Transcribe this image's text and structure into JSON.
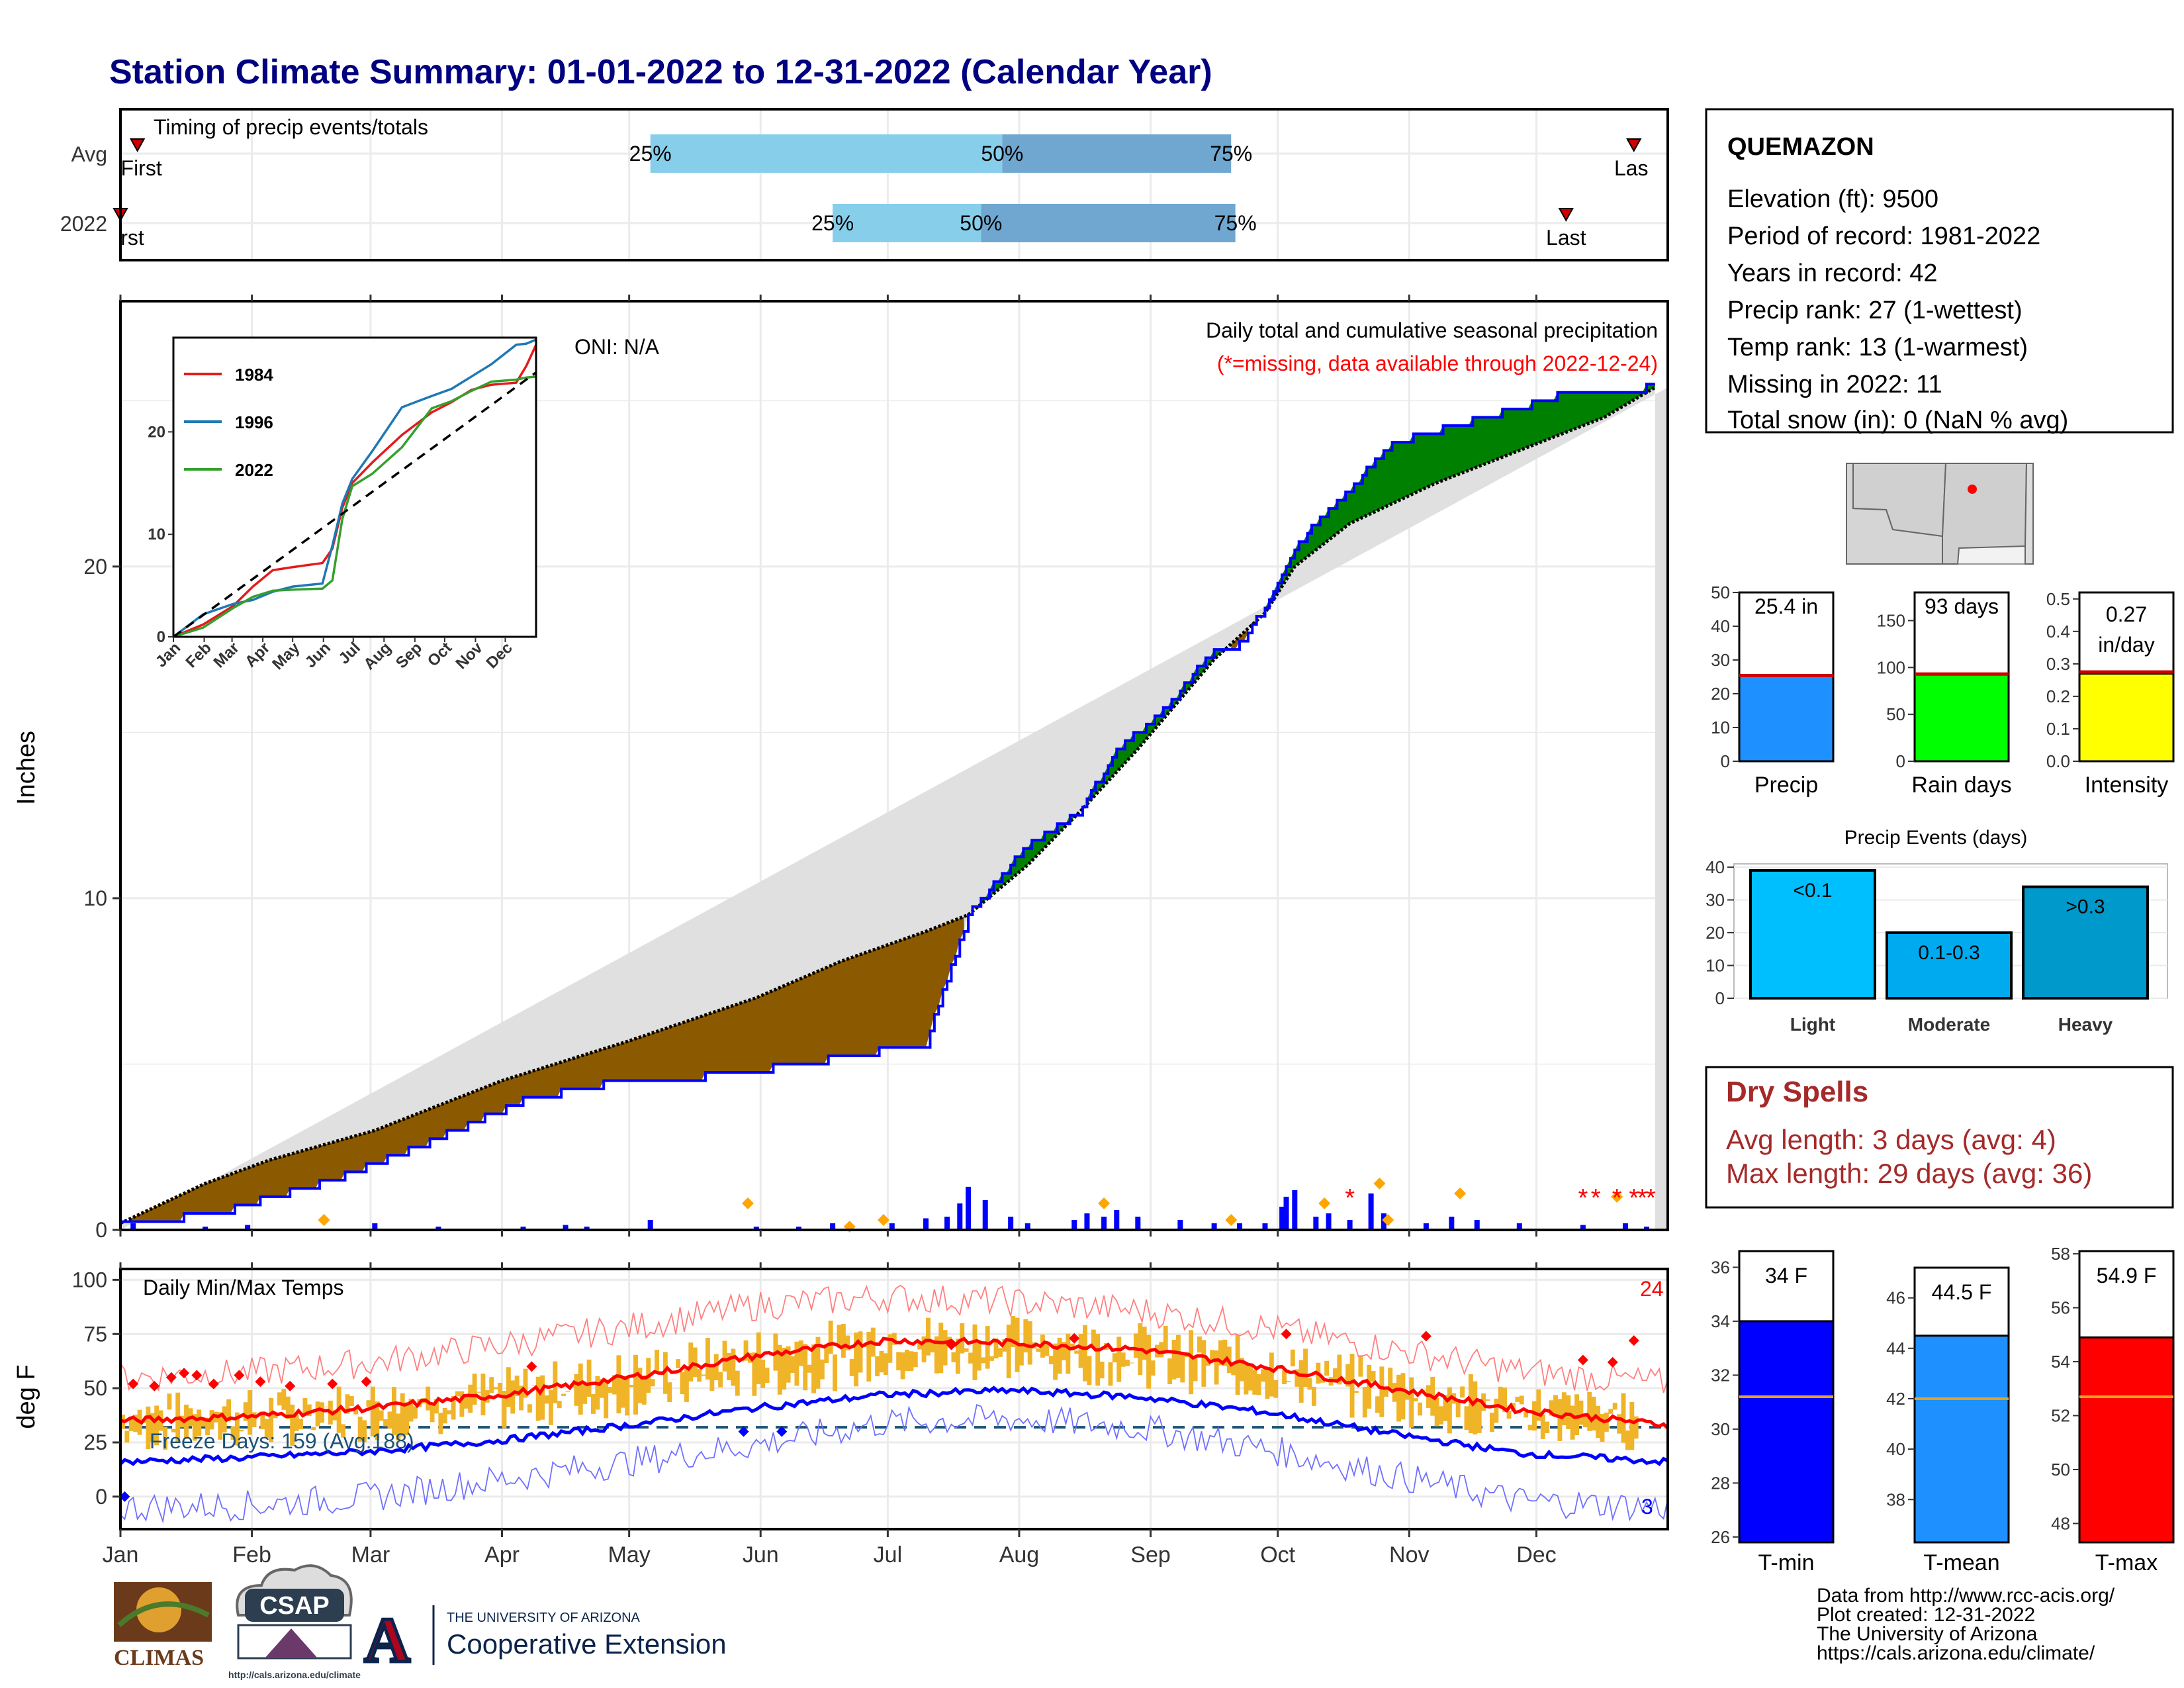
{
  "title": "Station Climate Summary: 01-01-2022 to 12-31-2022 (Calendar Year)",
  "colors": {
    "title": "#000080",
    "gray_fill": "#e0e0e0",
    "brown": "#8b5a00",
    "green": "#008000",
    "blue": "#0000ff",
    "light_bar": "#87ceeb",
    "dark_bar": "#6fa7d0",
    "temp_bar": "#f0b429",
    "red": "#ff0000",
    "orange": "#ffa500",
    "dry_spell_text": "#a52a2a"
  },
  "months": [
    "Jan",
    "Feb",
    "Mar",
    "Apr",
    "May",
    "Jun",
    "Jul",
    "Aug",
    "Sep",
    "Oct",
    "Nov",
    "Dec"
  ],
  "timing": {
    "heading": "Timing of precip events/totals",
    "rows": [
      {
        "label": "Avg",
        "first_day": 4,
        "last_day": 357,
        "first_label": "First",
        "last_label": "Las",
        "q25_day": 125,
        "q50_day": 208,
        "q75_day": 262,
        "q25_label": "25%",
        "q50_label": "50%",
        "q75_label": "75%"
      },
      {
        "label": "2022",
        "first_day": 0,
        "last_day": 341,
        "first_label": "rst",
        "last_label": "Last",
        "q25_day": 168,
        "q50_day": 203,
        "q75_day": 263,
        "q25_label": "25%",
        "q50_label": "50%",
        "q75_label": "75%"
      }
    ]
  },
  "precip_panel": {
    "ylabel": "Inches",
    "oni": "ONI: N/A",
    "heading": "Daily total and cumulative seasonal precipitation",
    "missing_note": "(*=missing, data available through 2022-12-24)",
    "y_ticks": [
      0,
      10,
      20
    ]
  },
  "inset": {
    "y_ticks": [
      0,
      10,
      20
    ],
    "legend": [
      {
        "name": "1984",
        "color": "#e31a1c"
      },
      {
        "name": "1996",
        "color": "#1f78b4"
      },
      {
        "name": "2022",
        "color": "#33a02c"
      }
    ]
  },
  "temp_panel": {
    "ylabel": "deg F",
    "heading": "Daily Min/Max Temps",
    "freeze_text": "Freeze Days: 159 (Avg:188)",
    "count_hot": "24",
    "count_cold": "3",
    "y_ticks": [
      0,
      25,
      50,
      75,
      100
    ]
  },
  "station": {
    "name": "QUEMAZON",
    "lines": [
      "Elevation (ft): 9500",
      "Period of record: 1981-2022",
      "Years in record: 42",
      "Precip rank: 27 (1-wettest)",
      "Temp rank: 13 (1-warmest)",
      "Missing in 2022: 11",
      "Total snow (in): 0 (NaN % avg)"
    ]
  },
  "summary_bars": [
    {
      "label": "Precip",
      "value_label": "25.4 in",
      "value": 25.4,
      "avg": 25.4,
      "ymax": 50,
      "ticks": [
        "0",
        "10",
        "20",
        "30",
        "40",
        "50"
      ],
      "color": "#1e90ff"
    },
    {
      "label": "Rain days",
      "value_label": "93 days",
      "value": 93,
      "avg": 93,
      "ymax": 180,
      "ticks": [
        "0",
        "50",
        "100",
        "150"
      ],
      "color": "#00ff00"
    },
    {
      "label": "Intensity",
      "value_label": "0.27 in/day",
      "value": 0.27,
      "avg": 0.275,
      "ymax": 0.52,
      "ticks": [
        "0.0",
        "0.1",
        "0.2",
        "0.3",
        "0.4",
        "0.5"
      ],
      "color": "#ffff00"
    }
  ],
  "precip_events": {
    "title": "Precip Events (days)",
    "ticks": [
      "0",
      "10",
      "20",
      "30",
      "40"
    ],
    "bars": [
      {
        "label": "Light",
        "value": 39,
        "range": "<0.1",
        "color": "#00bfff"
      },
      {
        "label": "Moderate",
        "value": 20,
        "range": "0.1-0.3",
        "color": "#00aaee"
      },
      {
        "label": "Heavy",
        "value": 34,
        "range": ">0.3",
        "color": "#0099cc"
      }
    ]
  },
  "dry_spells": {
    "title": "Dry Spells",
    "avg_length": "Avg length: 3 days (avg: 4)",
    "max_length": "Max length: 29 days (avg: 36)"
  },
  "temp_bars": [
    {
      "label": "T-min",
      "value_label": "34 F",
      "value": 34,
      "avg": 31.2,
      "ymin": 25.8,
      "ymax": 36.6,
      "ticks": [
        "26",
        "28",
        "30",
        "32",
        "34",
        "36"
      ],
      "color": "#0000ff"
    },
    {
      "label": "T-mean",
      "value_label": "44.5 F",
      "value": 44.5,
      "avg": 42.0,
      "ymin": 36.3,
      "ymax": 47.2,
      "ticks": [
        "38",
        "40",
        "42",
        "44",
        "46"
      ],
      "color": "#1e90ff"
    },
    {
      "label": "T-max",
      "value_label": "54.9 F",
      "value": 54.9,
      "avg": 52.7,
      "ymin": 47.3,
      "ymax": 58.1,
      "ticks": [
        "48",
        "50",
        "52",
        "54",
        "56",
        "58"
      ],
      "color": "#ff0000"
    }
  ],
  "footer": {
    "lines": [
      "Data from http://www.rcc-acis.org/",
      "Plot created: 12-31-2022",
      "The University of Arizona",
      "https://cals.arizona.edu/climate/"
    ],
    "climas": "CLIMAS",
    "csap": "CSAP",
    "csap_url": "http://cals.arizona.edu/climate",
    "ua_top": "THE UNIVERSITY OF ARIZONA",
    "ua_name": "Cooperative Extension",
    "ua_letter": "A"
  },
  "chart_data": [
    {
      "type": "area",
      "title": "Daily total and cumulative seasonal precipitation",
      "ylabel": "Inches",
      "x_unit": "day_of_year",
      "ylim": [
        0,
        28
      ],
      "series": [
        {
          "name": "2022",
          "x": [
            0,
            20,
            50,
            70,
            95,
            115,
            145,
            190,
            200,
            214,
            227,
            235,
            245,
            258,
            263,
            266,
            270,
            277,
            300,
            341,
            362
          ],
          "y": [
            0.3,
            0.4,
            1.5,
            2.5,
            3.9,
            4.4,
            4.7,
            5.6,
            9.5,
            11.6,
            12.7,
            14.5,
            15.5,
            17.5,
            17.5,
            18,
            18.8,
            20.6,
            23.7,
            25.2,
            25.4
          ]
        },
        {
          "name": "",
          "x": [
            0,
            20,
            35,
            60,
            90,
            120,
            150,
            170,
            190,
            200,
            214,
            227,
            240,
            258,
            270,
            277,
            290,
            310,
            330,
            350,
            362
          ],
          "y": [
            0.2,
            1.4,
            2.1,
            3.0,
            4.5,
            5.7,
            7.0,
            8.1,
            9.0,
            9.5,
            11.0,
            12.7,
            14.5,
            17.2,
            18.6,
            20.0,
            21.3,
            22.5,
            23.5,
            24.5,
            25.4
          ]
        }
      ]
    },
    {
      "type": "line",
      "title": "",
      "x_unit": "day_of_year",
      "ylim": [
        0,
        29
      ],
      "series": [
        {
          "name": "1984",
          "x": [
            0,
            30,
            60,
            80,
            100,
            120,
            150,
            160,
            170,
            180,
            200,
            230,
            260,
            280,
            300,
            320,
            345,
            355,
            365
          ],
          "y": [
            0,
            1.2,
            3.0,
            4.9,
            6.5,
            6.8,
            7.2,
            8.6,
            12.6,
            15.0,
            17.0,
            19.7,
            21.9,
            22.9,
            24.1,
            24.6,
            24.8,
            26.4,
            28.5
          ]
        },
        {
          "name": "1996",
          "x": [
            0,
            30,
            60,
            80,
            100,
            120,
            150,
            160,
            170,
            180,
            200,
            230,
            260,
            280,
            300,
            320,
            345,
            355,
            365
          ],
          "y": [
            0,
            2.2,
            3.2,
            3.6,
            4.4,
            4.9,
            5.2,
            8.9,
            13.0,
            15.4,
            18.1,
            22.4,
            23.5,
            24.2,
            25.4,
            26.6,
            28.5,
            28.6,
            29.0
          ]
        },
        {
          "name": "2022",
          "x": [
            0,
            30,
            60,
            80,
            100,
            120,
            150,
            160,
            170,
            180,
            200,
            230,
            260,
            280,
            300,
            320,
            345,
            355,
            365
          ],
          "y": [
            0,
            0.9,
            2.8,
            3.9,
            4.5,
            4.6,
            4.7,
            5.5,
            11.5,
            14.7,
            15.9,
            18.5,
            22.3,
            23.0,
            24.0,
            24.9,
            25.1,
            25.3,
            25.4
          ]
        },
        {
          "name": "",
          "x": [
            0,
            365
          ],
          "y": [
            0,
            25.8
          ]
        }
      ]
    },
    {
      "type": "line",
      "title": "Daily Min/Max Temps",
      "ylabel": "deg F",
      "x_unit": "day_of_year",
      "ylim": [
        -15,
        105
      ],
      "series": [
        {
          "name": "",
          "x": [
            0,
            30,
            60,
            90,
            120,
            150,
            180,
            210,
            240,
            270,
            300,
            330,
            365
          ],
          "y": [
            35,
            37,
            41,
            47,
            55,
            65,
            72,
            71,
            68,
            60,
            50,
            40,
            33
          ]
        },
        {
          "name": "",
          "x": [
            0,
            30,
            60,
            90,
            120,
            150,
            180,
            210,
            240,
            270,
            300,
            330,
            365
          ],
          "y": [
            16,
            18,
            21,
            26,
            33,
            41,
            47,
            49,
            46,
            39,
            29,
            20,
            16
          ]
        },
        {
          "name": "",
          "x": [
            0,
            30,
            60,
            90,
            120,
            150,
            180,
            210,
            240,
            270,
            300,
            330,
            365
          ],
          "y": [
            55,
            57,
            62,
            70,
            78,
            88,
            92,
            90,
            86,
            78,
            68,
            58,
            52
          ]
        },
        {
          "name": "",
          "x": [
            0,
            30,
            60,
            90,
            120,
            150,
            180,
            210,
            240,
            270,
            300,
            330,
            365
          ],
          "y": [
            -5,
            -4,
            0,
            8,
            16,
            24,
            34,
            36,
            32,
            22,
            10,
            -2,
            -5
          ]
        }
      ]
    }
  ]
}
